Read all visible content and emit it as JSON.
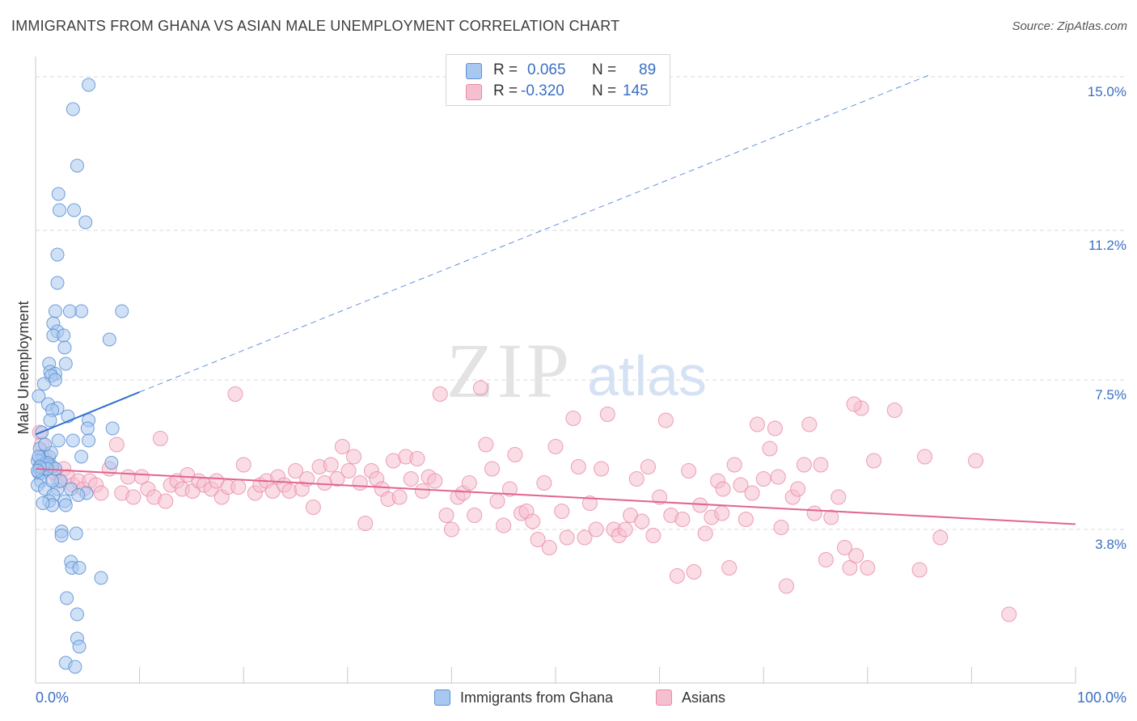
{
  "title": "IMMIGRANTS FROM GHANA VS ASIAN MALE UNEMPLOYMENT CORRELATION CHART",
  "source": "Source: ZipAtlas.com",
  "watermark": {
    "zip": "ZIP",
    "atlas": "atlas"
  },
  "colors": {
    "ghana_fill": "#a9c8ef",
    "ghana_stroke": "#5b8fd6",
    "ghana_line": "#2f6fcf",
    "asian_fill": "#f6bfd0",
    "asian_stroke": "#e88aa8",
    "asian_line": "#e2658f",
    "tick_label": "#3a6fc4",
    "grid": "#d9d9d9"
  },
  "legend": {
    "rows": [
      {
        "r_label": "R =",
        "r_value": "0.065",
        "n_label": "N =",
        "n_value": "89"
      },
      {
        "r_label": "R =",
        "r_value": "-0.320",
        "n_label": "N =",
        "n_value": "145"
      }
    ]
  },
  "bottom_legend": {
    "ghana": "Immigrants from Ghana",
    "asian": "Asians"
  },
  "chart_data": {
    "type": "scatter",
    "xlabel": "",
    "ylabel": "Male Unemployment",
    "xlim": [
      0,
      100
    ],
    "ylim": [
      0,
      15.5
    ],
    "x_tick_labels": {
      "left": "0.0%",
      "right": "100.0%"
    },
    "y_ticks": [
      {
        "value": 3.8,
        "label": "3.8%"
      },
      {
        "value": 7.5,
        "label": "7.5%"
      },
      {
        "value": 11.2,
        "label": "11.2%"
      },
      {
        "value": 15.0,
        "label": "15.0%"
      }
    ],
    "grid": true,
    "series": [
      {
        "name": "Immigrants from Ghana",
        "r": 0.065,
        "n": 89,
        "trend_solid": {
          "x": [
            0,
            10
          ],
          "y": [
            6.15,
            7.2
          ]
        },
        "trend_dashed": {
          "x": [
            10,
            86
          ],
          "y": [
            7.2,
            15.05
          ]
        },
        "points": [
          [
            5.1,
            14.8
          ],
          [
            3.6,
            14.2
          ],
          [
            4.0,
            12.8
          ],
          [
            2.2,
            12.1
          ],
          [
            2.3,
            11.7
          ],
          [
            3.7,
            11.7
          ],
          [
            4.8,
            11.4
          ],
          [
            2.1,
            10.6
          ],
          [
            2.1,
            9.9
          ],
          [
            8.3,
            9.2
          ],
          [
            1.9,
            9.2
          ],
          [
            4.4,
            9.2
          ],
          [
            3.3,
            9.2
          ],
          [
            1.7,
            8.9
          ],
          [
            2.1,
            8.7
          ],
          [
            1.7,
            8.6
          ],
          [
            2.7,
            8.6
          ],
          [
            7.1,
            8.5
          ],
          [
            2.8,
            8.3
          ],
          [
            1.3,
            7.9
          ],
          [
            2.9,
            7.9
          ],
          [
            1.4,
            7.7
          ],
          [
            1.9,
            7.65
          ],
          [
            1.5,
            7.6
          ],
          [
            1.9,
            7.5
          ],
          [
            0.8,
            7.4
          ],
          [
            0.3,
            7.1
          ],
          [
            1.2,
            6.9
          ],
          [
            2.1,
            6.8
          ],
          [
            1.6,
            6.75
          ],
          [
            1.4,
            6.5
          ],
          [
            3.1,
            6.6
          ],
          [
            5.1,
            6.5
          ],
          [
            0.6,
            6.2
          ],
          [
            2.2,
            6.0
          ],
          [
            3.6,
            6.0
          ],
          [
            7.4,
            6.3
          ],
          [
            5.0,
            6.3
          ],
          [
            5.1,
            6.0
          ],
          [
            0.4,
            5.8
          ],
          [
            0.7,
            5.6
          ],
          [
            1.3,
            5.6
          ],
          [
            1.5,
            5.7
          ],
          [
            0.5,
            5.5
          ],
          [
            0.2,
            5.5
          ],
          [
            0.6,
            5.4
          ],
          [
            0.4,
            5.3
          ],
          [
            0.3,
            5.2
          ],
          [
            0.8,
            5.3
          ],
          [
            0.6,
            5.2
          ],
          [
            0.9,
            5.4
          ],
          [
            1.6,
            5.35
          ],
          [
            1.1,
            5.45
          ],
          [
            4.4,
            5.6
          ],
          [
            7.3,
            5.45
          ],
          [
            0.5,
            5.0
          ],
          [
            0.2,
            4.9
          ],
          [
            0.9,
            4.8
          ],
          [
            2.1,
            4.8
          ],
          [
            3.4,
            4.8
          ],
          [
            4.9,
            4.7
          ],
          [
            1.7,
            4.65
          ],
          [
            4.1,
            4.65
          ],
          [
            1.3,
            4.5
          ],
          [
            2.8,
            4.5
          ],
          [
            1.6,
            4.4
          ],
          [
            2.9,
            4.4
          ],
          [
            2.5,
            3.75
          ],
          [
            2.5,
            3.65
          ],
          [
            3.9,
            3.7
          ],
          [
            3.4,
            3.0
          ],
          [
            3.5,
            2.85
          ],
          [
            4.2,
            2.85
          ],
          [
            6.3,
            2.6
          ],
          [
            3.0,
            2.1
          ],
          [
            4.0,
            1.7
          ],
          [
            4.0,
            1.1
          ],
          [
            4.2,
            0.9
          ],
          [
            2.9,
            0.5
          ],
          [
            3.8,
            0.4
          ],
          [
            1.9,
            5.3
          ],
          [
            0.3,
            5.6
          ],
          [
            1.1,
            5.3
          ],
          [
            0.7,
            4.45
          ],
          [
            2.4,
            5.0
          ],
          [
            0.4,
            5.35
          ],
          [
            1.6,
            5.0
          ],
          [
            0.2,
            5.25
          ],
          [
            0.9,
            5.9
          ]
        ]
      },
      {
        "name": "Asians",
        "r": -0.32,
        "n": 145,
        "trend": {
          "x": [
            0,
            100
          ],
          "y": [
            5.3,
            3.93
          ]
        },
        "points": [
          [
            0.4,
            6.2
          ],
          [
            0.6,
            5.9
          ],
          [
            0.9,
            5.6
          ],
          [
            1.3,
            5.4
          ],
          [
            1.8,
            5.2
          ],
          [
            2.2,
            5.0
          ],
          [
            2.7,
            5.3
          ],
          [
            3.1,
            5.1
          ],
          [
            3.6,
            4.9
          ],
          [
            4.1,
            5.0
          ],
          [
            4.6,
            4.8
          ],
          [
            5.2,
            5.0
          ],
          [
            5.8,
            4.9
          ],
          [
            6.3,
            4.7
          ],
          [
            7.1,
            5.3
          ],
          [
            7.8,
            5.9
          ],
          [
            8.3,
            4.7
          ],
          [
            8.9,
            5.1
          ],
          [
            9.4,
            4.6
          ],
          [
            10.2,
            5.1
          ],
          [
            10.8,
            4.8
          ],
          [
            11.4,
            4.6
          ],
          [
            12.0,
            6.05
          ],
          [
            12.5,
            4.5
          ],
          [
            13.0,
            4.9
          ],
          [
            13.6,
            5.0
          ],
          [
            14.1,
            4.8
          ],
          [
            14.6,
            5.15
          ],
          [
            15.1,
            4.75
          ],
          [
            15.7,
            5.0
          ],
          [
            16.2,
            4.9
          ],
          [
            16.9,
            4.8
          ],
          [
            17.4,
            5.0
          ],
          [
            17.9,
            4.6
          ],
          [
            18.5,
            4.85
          ],
          [
            19.2,
            7.15
          ],
          [
            19.5,
            4.85
          ],
          [
            20.0,
            5.4
          ],
          [
            21.1,
            4.7
          ],
          [
            21.6,
            4.9
          ],
          [
            22.2,
            5.0
          ],
          [
            22.8,
            4.75
          ],
          [
            23.3,
            5.1
          ],
          [
            23.9,
            4.9
          ],
          [
            24.4,
            4.75
          ],
          [
            25.0,
            5.25
          ],
          [
            25.6,
            4.8
          ],
          [
            26.1,
            5.05
          ],
          [
            26.7,
            4.35
          ],
          [
            27.3,
            5.35
          ],
          [
            27.8,
            4.95
          ],
          [
            28.4,
            5.4
          ],
          [
            29.0,
            5.05
          ],
          [
            29.5,
            5.85
          ],
          [
            30.1,
            5.25
          ],
          [
            30.6,
            5.6
          ],
          [
            31.2,
            4.95
          ],
          [
            31.7,
            3.95
          ],
          [
            32.3,
            5.25
          ],
          [
            32.8,
            5.05
          ],
          [
            33.3,
            4.8
          ],
          [
            33.9,
            4.55
          ],
          [
            34.4,
            5.5
          ],
          [
            35.0,
            4.6
          ],
          [
            35.6,
            5.6
          ],
          [
            36.1,
            5.05
          ],
          [
            36.7,
            5.55
          ],
          [
            37.2,
            4.75
          ],
          [
            37.8,
            5.1
          ],
          [
            38.4,
            5.0
          ],
          [
            38.9,
            7.15
          ],
          [
            39.5,
            4.15
          ],
          [
            40.0,
            3.8
          ],
          [
            40.6,
            4.6
          ],
          [
            41.1,
            4.7
          ],
          [
            41.7,
            4.95
          ],
          [
            42.2,
            4.15
          ],
          [
            42.8,
            7.3
          ],
          [
            43.3,
            5.9
          ],
          [
            43.9,
            5.3
          ],
          [
            44.4,
            4.5
          ],
          [
            45.0,
            3.9
          ],
          [
            45.6,
            4.8
          ],
          [
            46.1,
            5.65
          ],
          [
            46.7,
            4.2
          ],
          [
            47.2,
            4.25
          ],
          [
            47.8,
            4.0
          ],
          [
            48.3,
            3.55
          ],
          [
            48.9,
            4.95
          ],
          [
            49.4,
            3.35
          ],
          [
            50.0,
            5.85
          ],
          [
            50.6,
            4.25
          ],
          [
            51.1,
            3.6
          ],
          [
            51.7,
            6.55
          ],
          [
            52.2,
            5.35
          ],
          [
            52.8,
            3.6
          ],
          [
            53.3,
            4.45
          ],
          [
            53.9,
            3.8
          ],
          [
            54.4,
            5.3
          ],
          [
            55.0,
            6.65
          ],
          [
            55.6,
            3.8
          ],
          [
            56.1,
            3.65
          ],
          [
            56.7,
            3.8
          ],
          [
            57.2,
            4.15
          ],
          [
            57.8,
            5.05
          ],
          [
            58.3,
            4.0
          ],
          [
            58.9,
            5.35
          ],
          [
            59.4,
            3.65
          ],
          [
            60.0,
            4.6
          ],
          [
            60.6,
            6.5
          ],
          [
            61.1,
            4.15
          ],
          [
            61.7,
            2.65
          ],
          [
            62.2,
            4.05
          ],
          [
            62.8,
            5.25
          ],
          [
            63.3,
            2.75
          ],
          [
            63.9,
            4.4
          ],
          [
            64.4,
            3.7
          ],
          [
            65.0,
            4.1
          ],
          [
            65.6,
            5.0
          ],
          [
            66.1,
            4.8
          ],
          [
            66.7,
            2.85
          ],
          [
            67.2,
            5.4
          ],
          [
            67.8,
            4.9
          ],
          [
            68.3,
            4.05
          ],
          [
            68.9,
            4.7
          ],
          [
            69.4,
            6.4
          ],
          [
            70.0,
            5.05
          ],
          [
            70.6,
            5.8
          ],
          [
            71.1,
            6.3
          ],
          [
            71.7,
            3.85
          ],
          [
            72.2,
            2.4
          ],
          [
            72.8,
            4.6
          ],
          [
            73.3,
            4.8
          ],
          [
            73.9,
            5.4
          ],
          [
            74.4,
            6.4
          ],
          [
            74.9,
            4.2
          ],
          [
            75.5,
            5.4
          ],
          [
            76.0,
            3.05
          ],
          [
            76.5,
            4.1
          ],
          [
            77.2,
            4.6
          ],
          [
            77.8,
            3.35
          ],
          [
            78.3,
            2.85
          ],
          [
            78.9,
            3.15
          ],
          [
            79.4,
            6.8
          ],
          [
            80.0,
            2.85
          ],
          [
            80.6,
            5.5
          ],
          [
            82.6,
            6.75
          ],
          [
            85.0,
            2.8
          ],
          [
            85.5,
            5.6
          ],
          [
            87.0,
            3.6
          ],
          [
            90.4,
            5.5
          ],
          [
            93.6,
            1.7
          ],
          [
            78.7,
            6.9
          ],
          [
            71.4,
            5.1
          ],
          [
            66.0,
            4.2
          ]
        ]
      }
    ]
  }
}
